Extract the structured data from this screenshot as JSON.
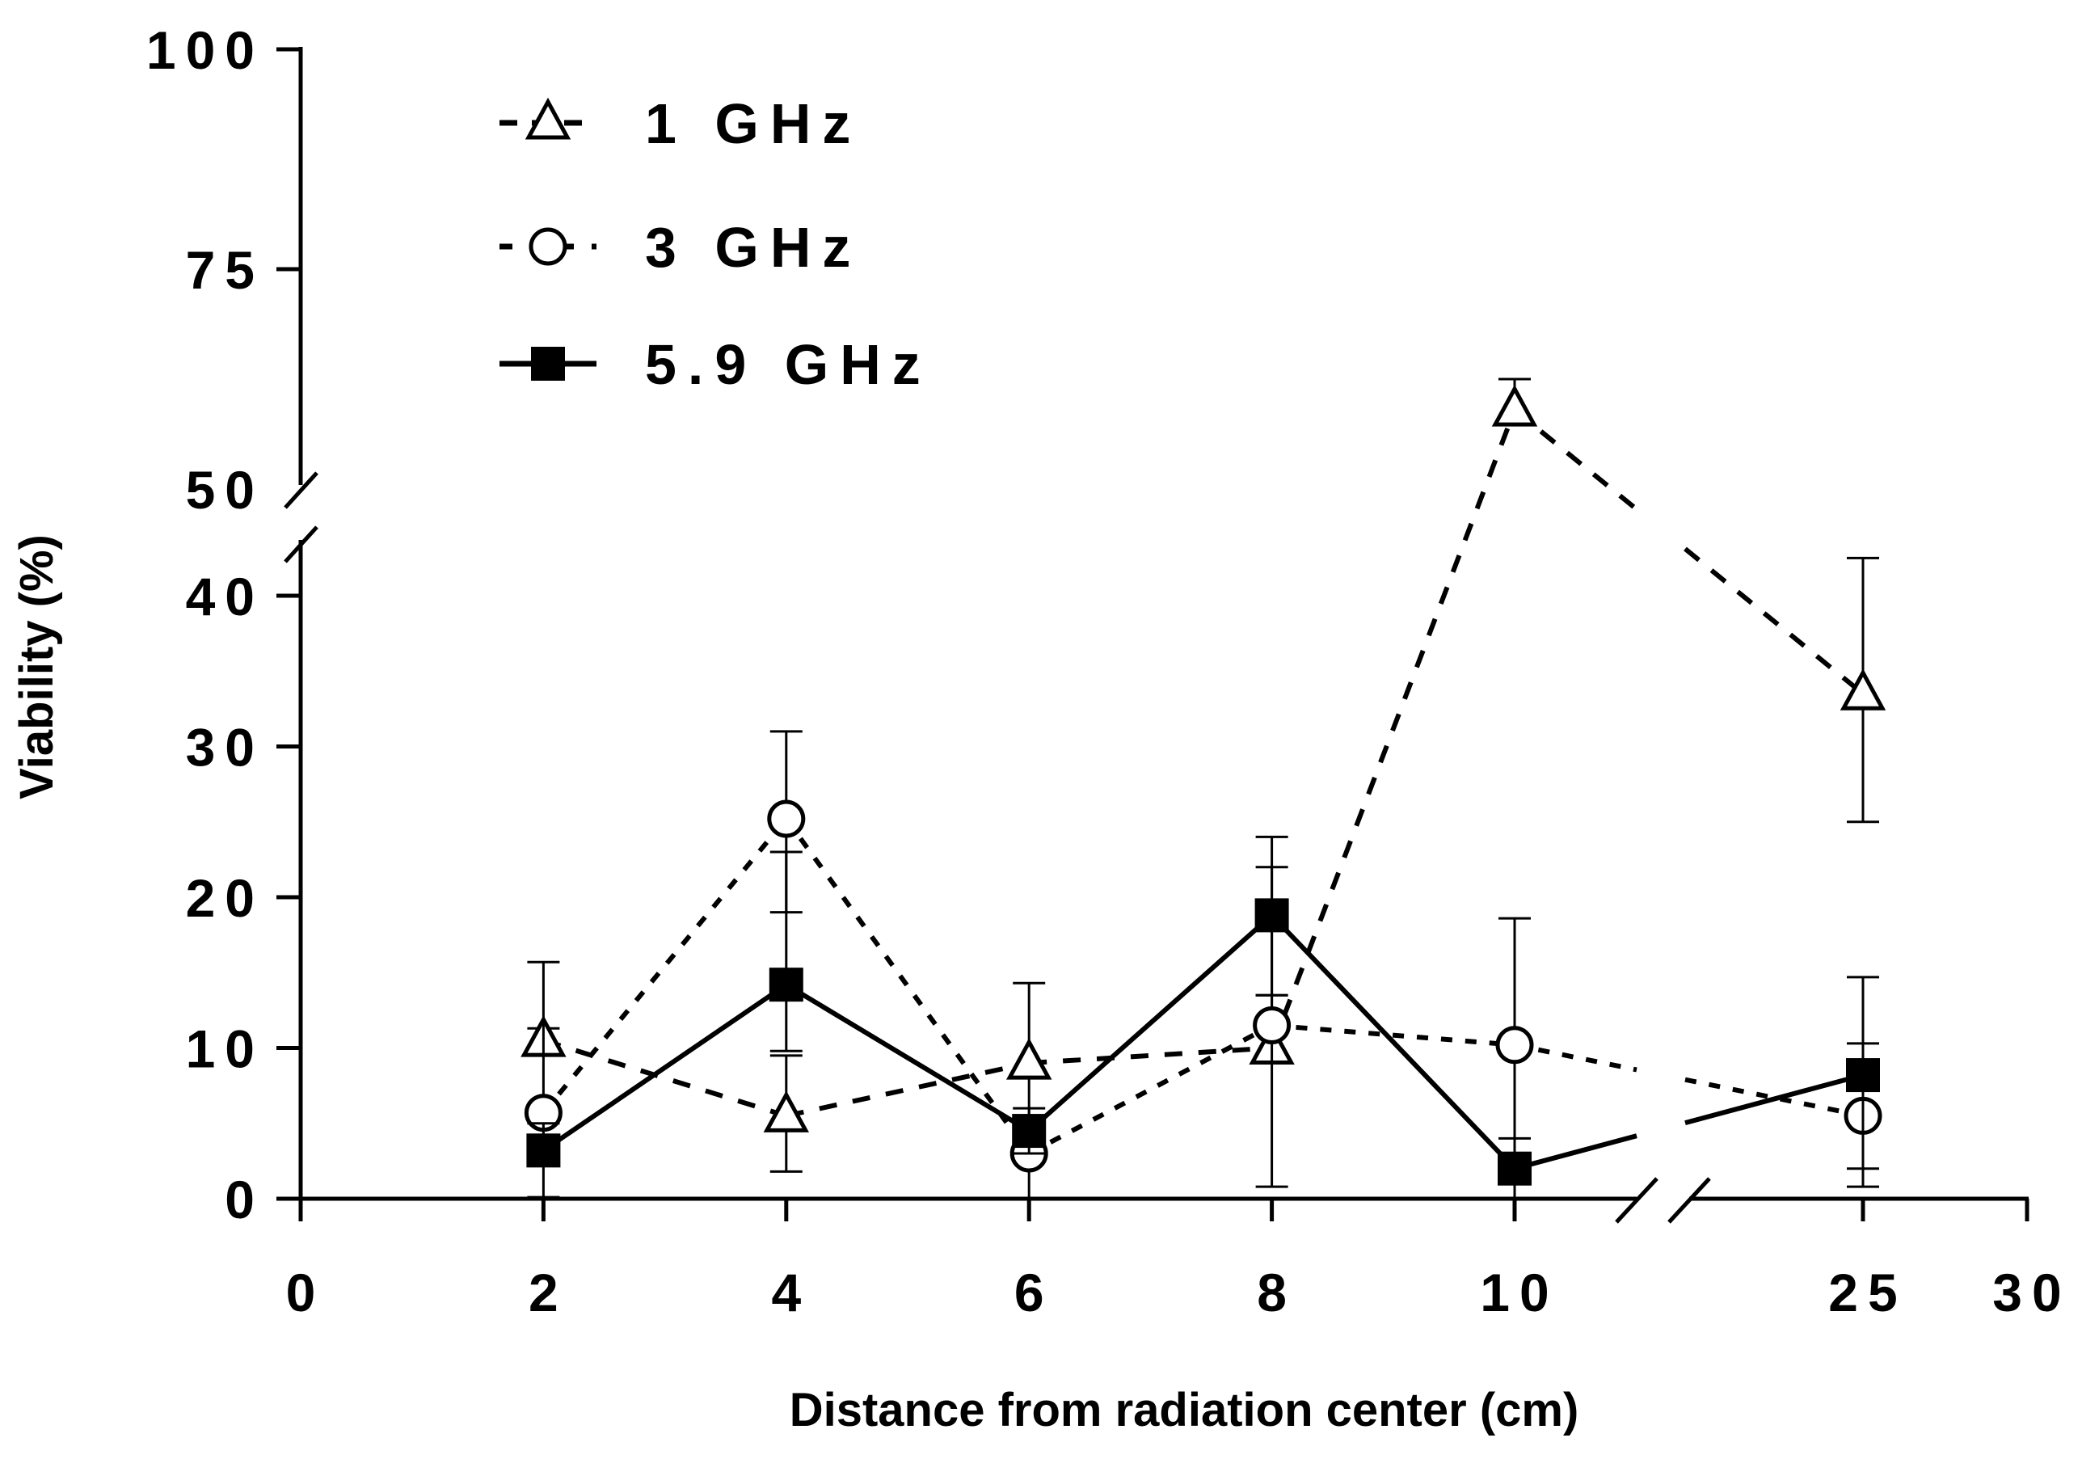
{
  "chart_data": {
    "type": "line",
    "title": "",
    "xlabel": "Distance from radiation center (cm)",
    "ylabel": "Viability (%)",
    "x_ticks": [
      "0",
      "2",
      "4",
      "6",
      "8",
      "10",
      "25",
      "30"
    ],
    "x_tick_values": [
      0,
      2,
      4,
      6,
      8,
      10,
      25,
      30
    ],
    "x_axis_break": [
      11,
      23
    ],
    "y_ticks": [
      "0",
      "10",
      "20",
      "30",
      "40",
      "50",
      "75",
      "100"
    ],
    "y_tick_values": [
      0,
      10,
      20,
      30,
      40,
      50,
      75,
      100
    ],
    "y_axis_break": [
      43,
      50
    ],
    "xlim": [
      0,
      30
    ],
    "ylim": [
      0,
      100
    ],
    "legend_position": "top-left",
    "x": [
      2,
      4,
      6,
      8,
      10,
      25
    ],
    "series": [
      {
        "name": "1 GHz",
        "marker": "open-triangle",
        "line": "dashed",
        "values": [
          10.5,
          5.5,
          9,
          10,
          59,
          33.5
        ],
        "err_low": [
          9.8,
          1.8,
          5.5,
          0.8,
          57.5,
          25
        ],
        "err_high": [
          11.3,
          9.5,
          14.3,
          22,
          62.5,
          42.5
        ]
      },
      {
        "name": "3 GHz",
        "marker": "open-circle",
        "line": "dotted",
        "values": [
          5.7,
          25.2,
          3,
          11.5,
          10.2,
          5.5
        ],
        "err_low": [
          5.5,
          19,
          0,
          9,
          1.8,
          0.8
        ],
        "err_high": [
          15.7,
          31,
          5,
          13.5,
          18.6,
          10.3
        ]
      },
      {
        "name": "5.9 GHz",
        "marker": "filled-square",
        "line": "solid",
        "values": [
          3.2,
          14.2,
          4.5,
          18.8,
          2,
          8.2
        ],
        "err_low": [
          0.1,
          9.8,
          3,
          13.5,
          0,
          2
        ],
        "err_high": [
          5,
          23,
          6,
          24,
          4,
          14.7
        ]
      }
    ]
  }
}
